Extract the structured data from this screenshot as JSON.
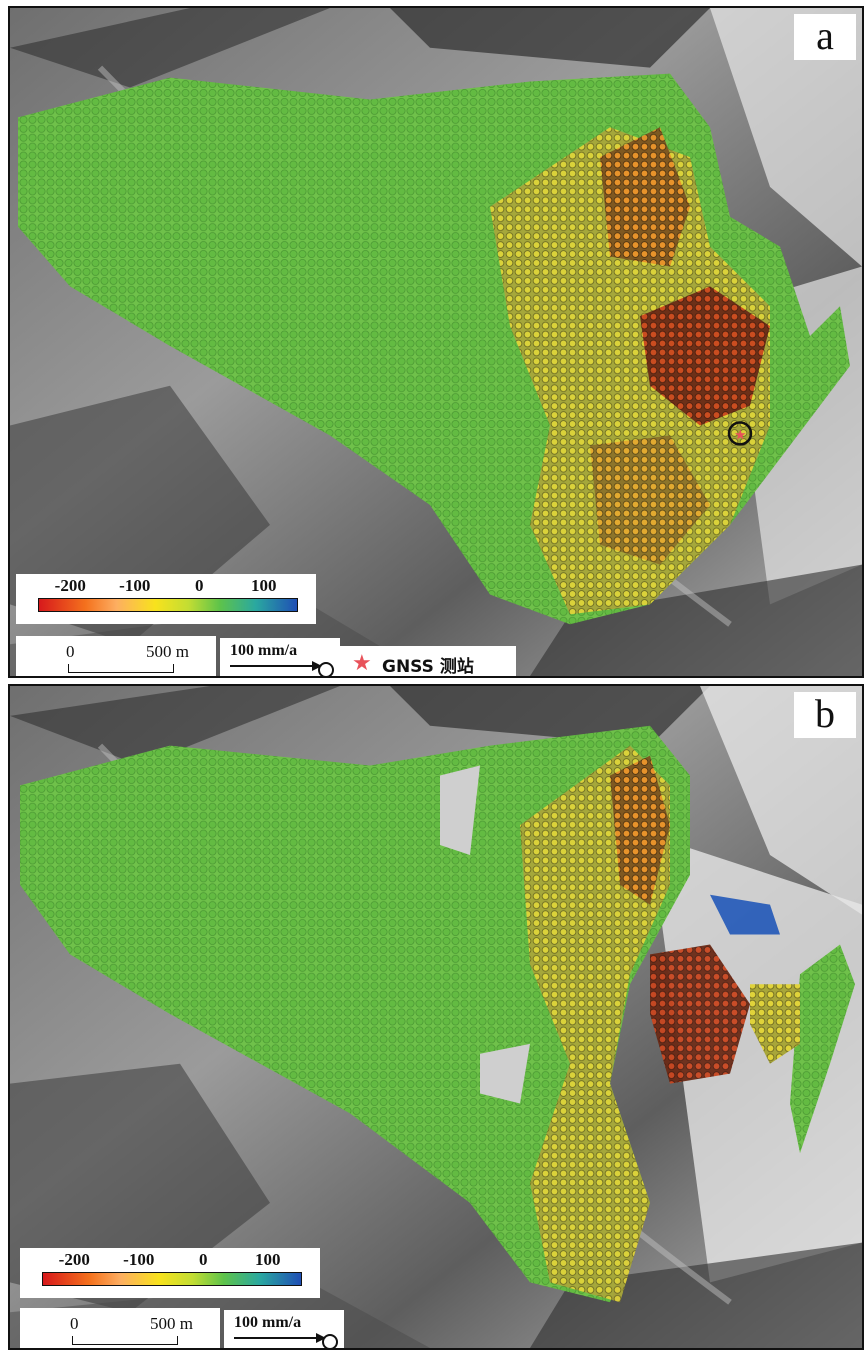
{
  "panels": [
    {
      "letter": "a"
    },
    {
      "letter": "b"
    }
  ],
  "colorbar": {
    "ticks": [
      "-200",
      "-100",
      "0",
      "100"
    ],
    "tick_values": [
      -200,
      -100,
      0,
      100
    ],
    "range": [
      -250,
      150
    ],
    "colors": [
      "#d7191c",
      "#f4711d",
      "#fdae61",
      "#f8e21d",
      "#c2dd33",
      "#5ec34a",
      "#2aa8a0",
      "#1f4fb5"
    ]
  },
  "scalebar": {
    "zero": "0",
    "distance": "500 m"
  },
  "vector_legend": {
    "label": "100 mm/a"
  },
  "gnss_legend": {
    "symbol": "★",
    "label": "GNSS 测站"
  }
}
